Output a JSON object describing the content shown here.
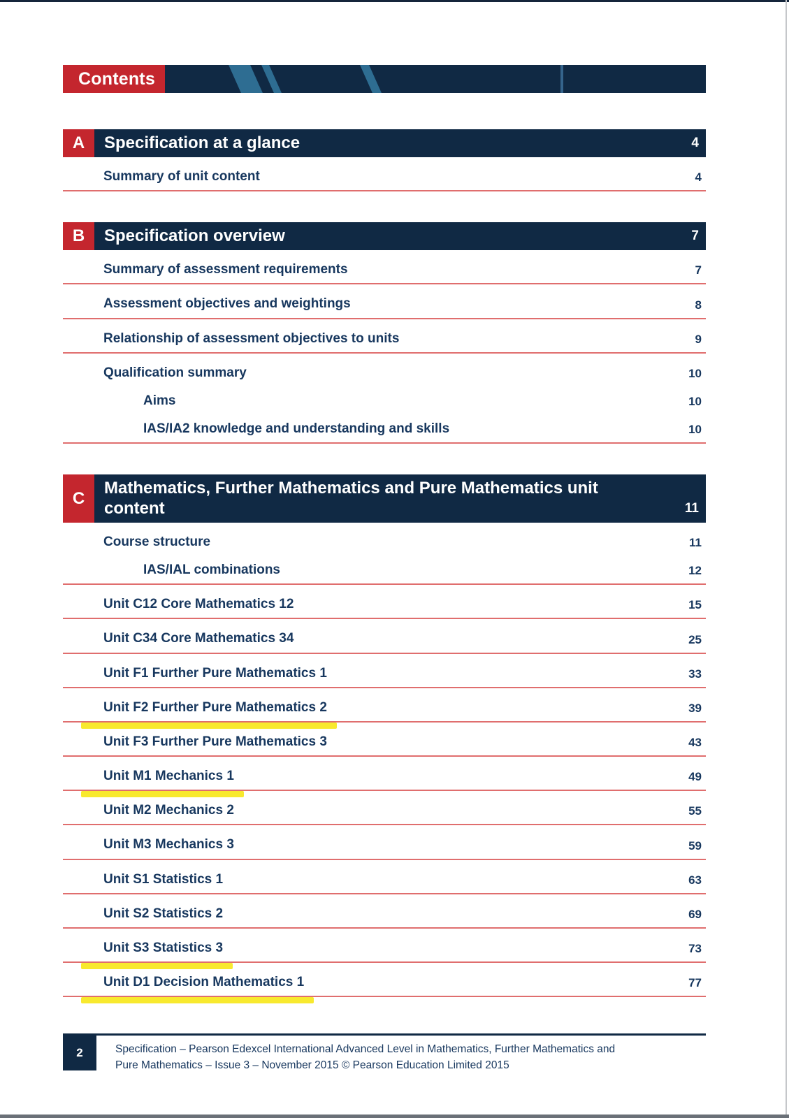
{
  "colors": {
    "red": "#c4262e",
    "navy": "#102944",
    "steel": "#2e6d92",
    "steel_line": "#35648c",
    "ink": "#17375e",
    "underline_red": "#e06e6e",
    "highlight_yellow": "#f8e92e"
  },
  "header": {
    "contents_label": "Contents"
  },
  "sections": [
    {
      "letter": "A",
      "title": "Specification at a glance",
      "page": "4",
      "items": [
        {
          "label": "Summary of unit content",
          "page": "4",
          "underline": true
        }
      ]
    },
    {
      "letter": "B",
      "title": "Specification overview",
      "page": "7",
      "items": [
        {
          "label": "Summary of assessment requirements",
          "page": "7",
          "underline": true
        },
        {
          "label": "Assessment objectives and weightings",
          "page": "8",
          "underline": true
        },
        {
          "label": "Relationship of assessment objectives to units",
          "page": "9",
          "underline": true
        },
        {
          "label": "Qualification summary",
          "page": "10"
        },
        {
          "label": "Aims",
          "page": "10",
          "indent": true
        },
        {
          "label": "IAS/IA2 knowledge and understanding and skills",
          "page": "10",
          "indent": true,
          "underline": true
        }
      ]
    },
    {
      "letter": "C",
      "title": "Mathematics, Further Mathematics and Pure Mathematics unit content",
      "page": "11",
      "tall": true,
      "items": [
        {
          "label": "Course structure",
          "page": "11"
        },
        {
          "label": "IAS/IAL combinations",
          "page": "12",
          "indent": true,
          "underline": true
        },
        {
          "label": "Unit C12 Core Mathematics 12",
          "page": "15",
          "underline": true
        },
        {
          "label": "Unit C34 Core Mathematics 34",
          "page": "25",
          "underline": true
        },
        {
          "label": "Unit F1 Further Pure Mathematics 1",
          "page": "33",
          "underline": true
        },
        {
          "label": "Unit F2 Further Pure Mathematics 2",
          "page": "39",
          "underline": true,
          "highlight": true
        },
        {
          "label": "Unit F3 Further Pure Mathematics 3",
          "page": "43",
          "underline": true
        },
        {
          "label": "Unit M1 Mechanics 1",
          "page": "49",
          "underline": true,
          "highlight": true
        },
        {
          "label": "Unit M2 Mechanics 2",
          "page": "55",
          "underline": true
        },
        {
          "label": "Unit M3 Mechanics 3",
          "page": "59",
          "underline": true
        },
        {
          "label": "Unit S1 Statistics 1",
          "page": "63",
          "underline": true
        },
        {
          "label": "Unit S2 Statistics 2",
          "page": "69",
          "underline": true
        },
        {
          "label": "Unit S3 Statistics 3",
          "page": "73",
          "underline": true,
          "highlight": true
        },
        {
          "label": "Unit D1 Decision Mathematics 1",
          "page": "77",
          "underline": true,
          "highlight": true
        }
      ]
    }
  ],
  "footer": {
    "page_number": "2",
    "line1": "Specification – Pearson Edexcel International Advanced Level in Mathematics, Further Mathematics and",
    "line2": "Pure Mathematics – Issue 3 – November 2015 © Pearson Education Limited 2015"
  }
}
